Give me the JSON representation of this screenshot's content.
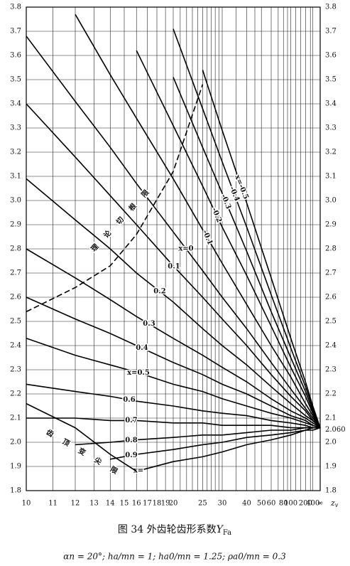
{
  "chart_data": {
    "type": "line",
    "title": "图 34  外齿轮齿形系数",
    "title_symbol": "Y",
    "title_symbol_sub": "Fa",
    "footnote": "αn = 20°;  ha/mn = 1;  ha0/mn = 1.25;  ρa0/mn = 0.3",
    "x_label": "z",
    "x_label_sub": "v",
    "xscale": "reciprocal",
    "xlim": [
      10,
      null
    ],
    "ylim": [
      1.8,
      3.8
    ],
    "xticks": [
      10,
      11,
      12,
      13,
      14,
      15,
      16,
      17,
      18,
      19,
      20,
      25,
      30,
      40,
      50,
      60,
      80,
      100,
      200,
      400,
      {
        "value": null,
        "label": "∞"
      }
    ],
    "xminor": [
      21,
      22,
      23,
      24,
      26,
      27,
      28,
      29,
      35,
      45,
      70,
      90,
      120,
      150,
      300
    ],
    "yticks": [
      1.8,
      1.9,
      {
        "value": 2,
        "label": "2.0"
      },
      2.1,
      2.2,
      2.3,
      2.4,
      2.5,
      2.6,
      2.7,
      2.8,
      2.9,
      {
        "value": 3,
        "label": "3.0"
      },
      3.1,
      3.2,
      3.3,
      3.4,
      3.5,
      3.6,
      3.7,
      3.8
    ],
    "grid": true,
    "convergence": {
      "value": 2.06,
      "label": "2.060"
    },
    "x": [
      10,
      12,
      14,
      16,
      20,
      25,
      30,
      40,
      60,
      100,
      200,
      400
    ],
    "series": [
      {
        "name": "x=-0.5",
        "color": "#000",
        "values": [
          null,
          null,
          null,
          null,
          null,
          3.54,
          3.29,
          2.99,
          2.68,
          2.43,
          2.25,
          2.15
        ]
      },
      {
        "name": "-0.4",
        "color": "#000",
        "values": [
          null,
          null,
          null,
          null,
          3.71,
          3.38,
          3.16,
          2.89,
          2.61,
          2.39,
          2.23,
          2.14
        ]
      },
      {
        "name": "-0.3",
        "color": "#000",
        "values": [
          null,
          null,
          null,
          null,
          3.51,
          3.22,
          3.03,
          2.79,
          2.54,
          2.35,
          2.21,
          2.13
        ]
      },
      {
        "name": "-0.2",
        "color": "#000",
        "values": [
          null,
          null,
          null,
          3.62,
          3.31,
          3.06,
          2.89,
          2.69,
          2.48,
          2.31,
          2.19,
          2.12
        ]
      },
      {
        "name": "-0.1",
        "color": "#000",
        "values": [
          null,
          3.77,
          3.52,
          3.34,
          3.09,
          2.88,
          2.74,
          2.57,
          2.4,
          2.27,
          2.16,
          2.11
        ]
      },
      {
        "name": "x=0",
        "color": "#000",
        "values": [
          3.68,
          3.41,
          3.22,
          3.07,
          2.87,
          2.71,
          2.6,
          2.47,
          2.33,
          2.22,
          2.14,
          2.1
        ]
      },
      {
        "name": "0.1",
        "color": "#000",
        "values": [
          3.4,
          3.18,
          3.02,
          2.9,
          2.73,
          2.6,
          2.51,
          2.4,
          2.28,
          2.19,
          2.13,
          2.09
        ]
      },
      {
        "name": "0.2",
        "color": "#000",
        "values": [
          3.09,
          2.92,
          2.8,
          2.7,
          2.58,
          2.47,
          2.4,
          2.32,
          2.23,
          2.16,
          2.11,
          2.09
        ]
      },
      {
        "name": "0.3",
        "color": "#000",
        "values": [
          2.8,
          2.68,
          2.59,
          2.52,
          2.43,
          2.36,
          2.31,
          2.25,
          2.18,
          2.13,
          2.1,
          2.08
        ]
      },
      {
        "name": "0.4",
        "color": "#000",
        "values": [
          2.6,
          2.51,
          2.45,
          2.4,
          2.33,
          2.28,
          2.24,
          2.2,
          2.15,
          2.11,
          2.09,
          2.07
        ]
      },
      {
        "name": "x=0.5",
        "color": "#000",
        "values": [
          2.43,
          2.36,
          2.32,
          2.29,
          2.24,
          2.21,
          2.18,
          2.15,
          2.12,
          2.1,
          2.08,
          2.07
        ]
      },
      {
        "name": "0.6",
        "color": "#000",
        "values": [
          2.24,
          2.21,
          2.19,
          2.17,
          2.15,
          2.13,
          2.12,
          2.11,
          2.09,
          2.08,
          2.07,
          2.06
        ]
      },
      {
        "name": "0.7",
        "color": "#000",
        "values": [
          2.1,
          2.1,
          2.09,
          2.09,
          2.08,
          2.08,
          2.07,
          2.07,
          2.07,
          2.06,
          2.06,
          2.06
        ]
      },
      {
        "name": "0.8",
        "color": "#000",
        "values": [
          null,
          1.99,
          2.0,
          2.01,
          2.02,
          2.03,
          2.03,
          2.04,
          2.05,
          2.05,
          2.06,
          2.06
        ]
      },
      {
        "name": "0.9",
        "color": "#000",
        "values": [
          null,
          null,
          1.93,
          1.95,
          1.97,
          1.99,
          2.0,
          2.02,
          2.03,
          2.04,
          2.05,
          2.06
        ]
      },
      {
        "name": "x=",
        "color": "#000",
        "values": [
          null,
          null,
          null,
          1.88,
          1.92,
          1.94,
          1.96,
          1.99,
          2.01,
          2.03,
          2.05,
          2.05
        ]
      }
    ],
    "limit_lines": [
      {
        "name": "理论切根限",
        "dashed": true,
        "x": [
          10,
          12,
          14,
          16,
          20,
          25
        ],
        "values": [
          2.54,
          2.64,
          2.73,
          2.86,
          3.12,
          3.48
        ]
      },
      {
        "name": "齿顶变尖限",
        "dashed": false,
        "x": [
          10,
          12,
          14,
          16
        ],
        "values": [
          2.16,
          2.06,
          1.95,
          1.88
        ]
      }
    ]
  }
}
